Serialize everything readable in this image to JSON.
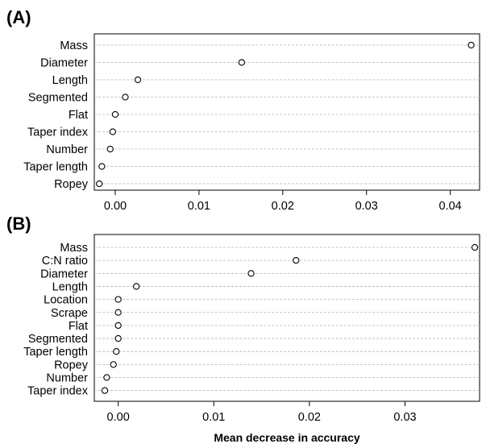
{
  "chart_data": [
    {
      "type": "scatter",
      "panel_label": "(A)",
      "categories": [
        "Mass",
        "Diameter",
        "Length",
        "Segmented",
        "Flat",
        "Taper index",
        "Number",
        "Taper length",
        "Ropey"
      ],
      "values": [
        0.0425,
        0.0151,
        0.0027,
        0.0012,
        0.0,
        -0.0003,
        -0.0006,
        -0.0016,
        -0.0019
      ],
      "xlim": [
        -0.0025,
        0.0435
      ],
      "xticks": [
        0.0,
        0.01,
        0.02,
        0.03,
        0.04
      ],
      "xtick_labels": [
        "0.00",
        "0.01",
        "0.02",
        "0.03",
        "0.04"
      ],
      "grid": "horizontal dashed",
      "xlabel": "",
      "ylabel": ""
    },
    {
      "type": "scatter",
      "panel_label": "(B)",
      "categories": [
        "Mass",
        "C:N ratio",
        "Diameter",
        "Length",
        "Location",
        "Scrape",
        "Flat",
        "Segmented",
        "Taper length",
        "Ropey",
        "Number",
        "Taper index"
      ],
      "values": [
        0.0373,
        0.0186,
        0.0139,
        0.0019,
        0.0,
        0.0,
        0.0,
        0.0,
        -0.0002,
        -0.0005,
        -0.0012,
        -0.0014
      ],
      "xlim": [
        -0.0025,
        0.0378
      ],
      "xticks": [
        0.0,
        0.01,
        0.02,
        0.03
      ],
      "xtick_labels": [
        "0.00",
        "0.01",
        "0.02",
        "0.03"
      ],
      "grid": "horizontal dashed",
      "xlabel": "Mean decrease in accuracy",
      "ylabel": ""
    }
  ]
}
